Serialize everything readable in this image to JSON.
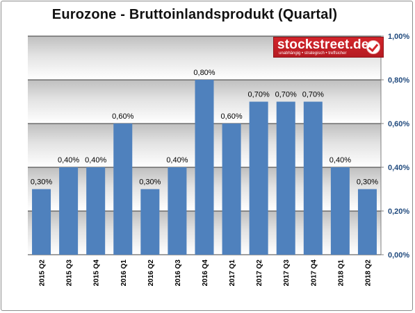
{
  "chart_data": {
    "type": "bar",
    "title": "Eurozone - Bruttoinlandsprodukt (Quartal)",
    "categories": [
      "2015 Q2",
      "2015 Q3",
      "2015 Q4",
      "2016 Q1",
      "2016 Q2",
      "2016 Q3",
      "2016 Q4",
      "2017 Q1",
      "2017 Q2",
      "2017 Q3",
      "2017 Q4",
      "2018 Q1",
      "2018 Q2"
    ],
    "values": [
      0.3,
      0.4,
      0.4,
      0.6,
      0.3,
      0.4,
      0.8,
      0.6,
      0.7,
      0.7,
      0.7,
      0.4,
      0.3
    ],
    "data_labels": [
      "0,30%",
      "0,40%",
      "0,40%",
      "0,60%",
      "0,30%",
      "0,40%",
      "0,80%",
      "0,60%",
      "0,70%",
      "0,70%",
      "0,70%",
      "0,40%",
      "0,30%"
    ],
    "ylim": [
      0,
      1.0
    ],
    "y_ticks": [
      0,
      0.2,
      0.4,
      0.6,
      0.8,
      1.0
    ],
    "y_tick_labels": [
      "0,00%",
      "0,20%",
      "0,40%",
      "0,60%",
      "0,80%",
      "1,00%"
    ],
    "y_axis_side": "right",
    "grid": true,
    "legend": false,
    "colors": {
      "bar": "#4f81bd",
      "tick_label": "#1f497d",
      "gridline": "#000000"
    }
  },
  "logo": {
    "name": "stockstreet.de",
    "tagline": "unabhängig • strategisch • treffsicher",
    "icon": "checkmark-icon"
  }
}
